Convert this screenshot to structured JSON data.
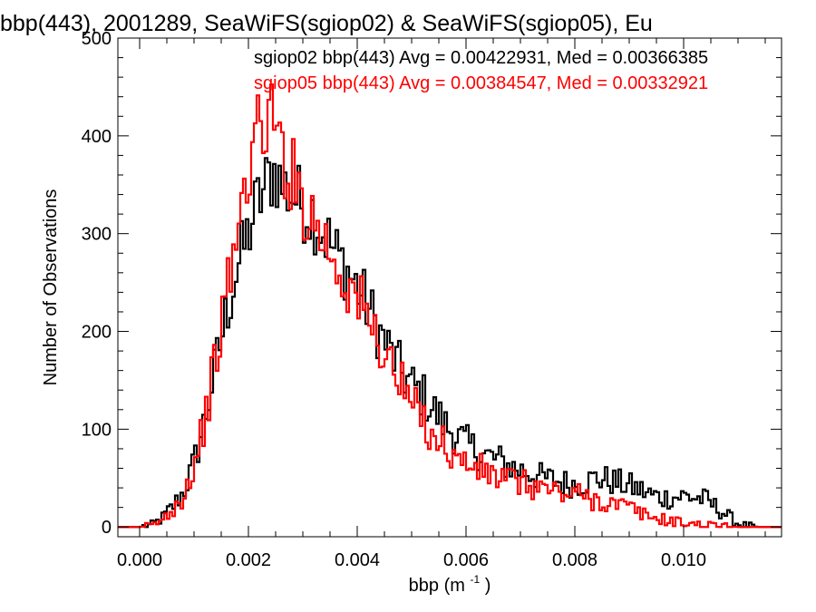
{
  "chart_data": {
    "type": "histogram",
    "title": "bbp(443), 2001289, SeaWiFS(sgiop02) & SeaWiFS(sgiop05), Eu",
    "xlabel": "bbp (m",
    "xlabel_sup": "-1",
    "xlabel_close": ")",
    "ylabel": "Number of Observations",
    "xlim": [
      -0.0004,
      0.0118
    ],
    "ylim": [
      -10,
      500
    ],
    "xticks": [
      "0.000",
      "0.002",
      "0.004",
      "0.006",
      "0.008",
      "0.010"
    ],
    "xtick_values": [
      0.0,
      0.002,
      0.004,
      0.006,
      0.008,
      0.01
    ],
    "yticks": [
      "0",
      "100",
      "200",
      "300",
      "400",
      "500"
    ],
    "ytick_values": [
      0,
      100,
      200,
      300,
      400,
      500
    ],
    "grid": false,
    "bin_width": 5e-05,
    "series": [
      {
        "name": "sgiop02",
        "color": "#000000",
        "annotation": "sgiop02 bbp(443) Avg = 0.00422931, Med = 0.00366385",
        "x": [
          0.0,
          0.0002,
          0.0004,
          0.0006,
          0.0008,
          0.001,
          0.0012,
          0.0014,
          0.0016,
          0.0018,
          0.002,
          0.0021,
          0.0022,
          0.0023,
          0.0024,
          0.0025,
          0.0026,
          0.0027,
          0.0028,
          0.0029,
          0.003,
          0.0032,
          0.0034,
          0.0036,
          0.0038,
          0.004,
          0.0042,
          0.0044,
          0.0046,
          0.0048,
          0.005,
          0.0052,
          0.0054,
          0.0056,
          0.0058,
          0.006,
          0.0062,
          0.0064,
          0.0066,
          0.0068,
          0.007,
          0.0072,
          0.0074,
          0.0076,
          0.0078,
          0.008,
          0.0082,
          0.0084,
          0.0086,
          0.0088,
          0.009,
          0.0092,
          0.0094,
          0.0096,
          0.0098,
          0.01,
          0.0102,
          0.0104,
          0.0106,
          0.0108,
          0.011,
          0.0112,
          0.0114,
          0.0116,
          0.0118
        ],
        "y": [
          0,
          2,
          8,
          20,
          35,
          65,
          110,
          165,
          220,
          265,
          300,
          320,
          335,
          345,
          360,
          365,
          350,
          345,
          340,
          335,
          330,
          320,
          300,
          280,
          265,
          245,
          225,
          200,
          180,
          160,
          145,
          135,
          120,
          105,
          95,
          85,
          78,
          72,
          68,
          62,
          58,
          55,
          50,
          48,
          45,
          44,
          46,
          50,
          48,
          45,
          42,
          38,
          33,
          30,
          30,
          32,
          30,
          28,
          20,
          12,
          3,
          1,
          0,
          0,
          0
        ]
      },
      {
        "name": "sgiop05",
        "color": "#ff0000",
        "annotation": "sgiop05 bbp(443) Avg = 0.00384547, Med = 0.00332921",
        "x": [
          0.0,
          0.0002,
          0.0004,
          0.0006,
          0.0008,
          0.001,
          0.0012,
          0.0014,
          0.0016,
          0.0017,
          0.0018,
          0.0019,
          0.002,
          0.0021,
          0.0022,
          0.0023,
          0.0024,
          0.0025,
          0.0026,
          0.0027,
          0.0028,
          0.0029,
          0.003,
          0.0032,
          0.0034,
          0.0036,
          0.0038,
          0.004,
          0.0042,
          0.0044,
          0.0046,
          0.0048,
          0.005,
          0.0052,
          0.0054,
          0.0056,
          0.0058,
          0.006,
          0.0062,
          0.0064,
          0.0066,
          0.0068,
          0.007,
          0.0072,
          0.0074,
          0.0076,
          0.0078,
          0.008,
          0.0082,
          0.0084,
          0.0086,
          0.0088,
          0.009,
          0.0092,
          0.0094,
          0.0096,
          0.0098,
          0.01,
          0.0102,
          0.0104,
          0.0106,
          0.0108,
          0.011,
          0.0112,
          0.0114,
          0.0116,
          0.0118
        ],
        "y": [
          0,
          1,
          6,
          18,
          32,
          62,
          110,
          170,
          240,
          270,
          300,
          330,
          370,
          395,
          405,
          415,
          425,
          400,
          390,
          370,
          360,
          350,
          335,
          315,
          295,
          270,
          250,
          235,
          210,
          190,
          170,
          145,
          125,
          110,
          95,
          85,
          70,
          65,
          60,
          55,
          50,
          48,
          45,
          42,
          40,
          37,
          33,
          35,
          30,
          28,
          25,
          22,
          20,
          14,
          10,
          8,
          6,
          4,
          3,
          2,
          1,
          1,
          0,
          0,
          0,
          0,
          0
        ]
      }
    ]
  }
}
